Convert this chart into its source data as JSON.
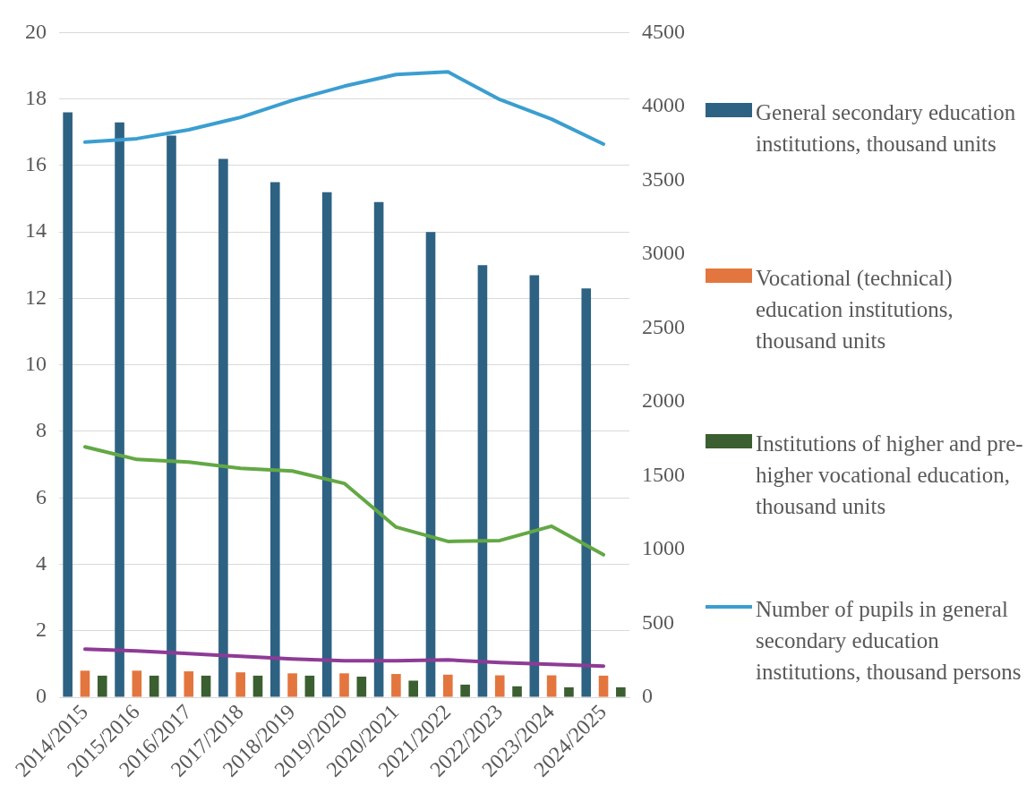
{
  "chart_data": {
    "type": "bar",
    "categories": [
      "2014/2015",
      "2015/2016",
      "2016/2017",
      "2017/2018",
      "2018/2019",
      "2019/2020",
      "2020/2021",
      "2021/2022",
      "2022/2023",
      "2023/2024",
      "2024/2025"
    ],
    "series": [
      {
        "name": "General secondary education institutions, thousand units",
        "color": "#2e6283",
        "values": [
          17.6,
          17.3,
          16.9,
          16.2,
          15.5,
          15.2,
          14.9,
          14.0,
          13.0,
          12.7,
          12.3
        ]
      },
      {
        "name": "Vocational (technical) education institutions, thousand units",
        "color": "#e3763e",
        "values": [
          0.8,
          0.8,
          0.78,
          0.75,
          0.72,
          0.72,
          0.7,
          0.68,
          0.66,
          0.66,
          0.65
        ]
      },
      {
        "name": "Institutions of higher and pre-higher vocational education, thousand units",
        "color": "#3b5f30",
        "values": [
          0.65,
          0.65,
          0.65,
          0.65,
          0.65,
          0.62,
          0.5,
          0.38,
          0.33,
          0.3,
          0.3
        ]
      },
      {
        "name": "Number of pupils in general secondary education institutions, thousand persons",
        "type": "line",
        "axis": "y2",
        "color": "#3b9ed0",
        "values": [
          3758,
          3782,
          3842,
          3926,
          4041,
          4137,
          4216,
          4234,
          4047,
          3914,
          3745
        ]
      },
      {
        "type": "line",
        "axis": "y2",
        "color": "#63a844",
        "values": [
          1695,
          1610,
          1592,
          1550,
          1532,
          1448,
          1152,
          1055,
          1061,
          1158,
          965
        ]
      },
      {
        "type": "line",
        "axis": "y2",
        "color": "#8e3b96",
        "values": [
          326,
          314,
          296,
          277,
          259,
          247,
          247,
          253,
          235,
          223,
          211
        ]
      }
    ],
    "ylim": [
      0,
      20
    ],
    "yticks": [
      0,
      2,
      4,
      6,
      8,
      10,
      12,
      14,
      16,
      18,
      20
    ],
    "y2lim": [
      0,
      4500
    ],
    "y2ticks": [
      0,
      500,
      1000,
      1500,
      2000,
      2500,
      3000,
      3500,
      4000,
      4500
    ],
    "grid": "y",
    "legend": "right",
    "marker": "none"
  }
}
